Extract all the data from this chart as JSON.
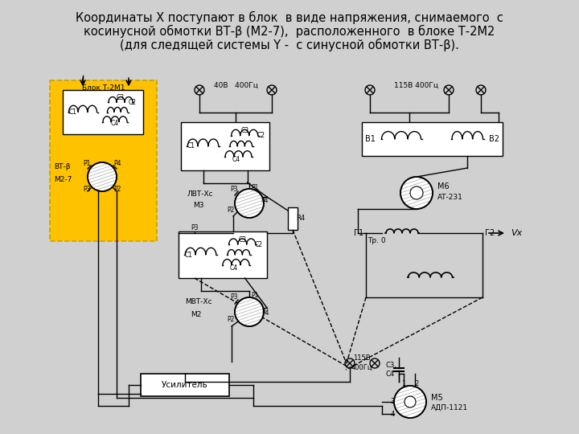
{
  "title_lines": [
    "Координаты X поступают в блок  в виде напряжения, снимаемого  с",
    "косинусной обмотки ВТ-β (M2-7),  расположенного  в блоке Т-2M2",
    "(для следящей системы Y -  с синусной обмотки ВТ-β)."
  ],
  "bg_color": "#d0d0d0",
  "yellow_bg": "#FFC200",
  "yellow_edge": "#C8A000"
}
